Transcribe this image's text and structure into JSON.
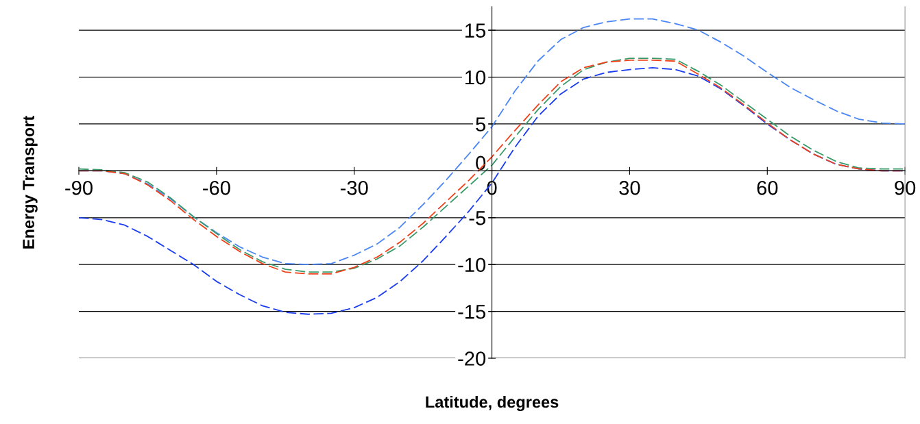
{
  "chart_data": {
    "type": "line",
    "xlabel": "Latitude, degrees",
    "ylabel": "Energy Transport",
    "x": [
      -90,
      -85,
      -80,
      -75,
      -70,
      -65,
      -60,
      -55,
      -50,
      -45,
      -40,
      -35,
      -30,
      -25,
      -20,
      -15,
      -10,
      -5,
      0,
      5,
      10,
      15,
      20,
      25,
      30,
      35,
      40,
      45,
      50,
      55,
      60,
      65,
      70,
      75,
      80,
      85,
      90
    ],
    "series": [
      {
        "color": "#4a86f5",
        "values": [
          0,
          0,
          -0.3,
          -1.4,
          -3,
          -4.9,
          -6.6,
          -8.1,
          -9.2,
          -9.9,
          -10,
          -9.9,
          -9,
          -7.8,
          -6,
          -3.6,
          -1,
          1.8,
          4.7,
          8.5,
          11.7,
          14,
          15.3,
          15.9,
          16.2,
          16.2,
          15.7,
          15,
          13.7,
          12.2,
          10.5,
          8.9,
          7.6,
          6.4,
          5.5,
          5.1,
          5
        ]
      },
      {
        "color": "#1a3cf0",
        "values": [
          -5,
          -5.2,
          -5.8,
          -7,
          -8.5,
          -10,
          -11.8,
          -13.2,
          -14.4,
          -15.1,
          -15.3,
          -15.2,
          -14.6,
          -13.5,
          -11.8,
          -9.6,
          -7,
          -4.3,
          -1.3,
          2.5,
          5.8,
          8.2,
          9.8,
          10.5,
          10.8,
          11,
          10.8,
          10.1,
          8.7,
          6.9,
          5,
          3.3,
          1.8,
          0.7,
          0.2,
          0,
          0
        ]
      },
      {
        "color": "#3a9a6a",
        "values": [
          0.2,
          0.1,
          -0.2,
          -1.2,
          -2.9,
          -4.9,
          -6.7,
          -8.4,
          -9.7,
          -10.5,
          -10.8,
          -10.8,
          -10.4,
          -9.4,
          -8,
          -6,
          -3.8,
          -1.6,
          0.6,
          3.6,
          6.5,
          9,
          10.8,
          11.6,
          12,
          12,
          11.9,
          10.6,
          9.1,
          7.3,
          5.5,
          3.7,
          2.2,
          1,
          0.3,
          0.2,
          0.2
        ]
      },
      {
        "color": "#f0401a",
        "values": [
          0,
          0,
          -0.3,
          -1.5,
          -3.2,
          -5.2,
          -7,
          -8.6,
          -9.9,
          -10.8,
          -11,
          -11,
          -10.3,
          -9.2,
          -7.6,
          -5.6,
          -3.3,
          -1,
          1.5,
          4.3,
          7,
          9.5,
          11,
          11.6,
          11.8,
          11.8,
          11.7,
          10.3,
          8.8,
          7,
          5.1,
          3.3,
          1.8,
          0.7,
          0.2,
          0,
          0
        ]
      }
    ],
    "xlim": [
      -90,
      90
    ],
    "xticks": [
      -90,
      -60,
      -30,
      0,
      30,
      60,
      90
    ],
    "ylim": [
      -20,
      17.5
    ],
    "yticks": [
      -20,
      -15,
      -10,
      -5,
      0,
      5,
      10,
      15
    ],
    "grid": "y",
    "line_style": "dashed",
    "marker": "none"
  }
}
